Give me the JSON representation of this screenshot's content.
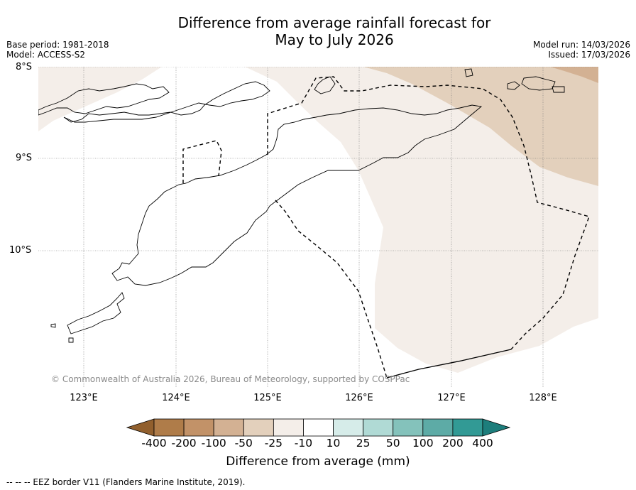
{
  "title": {
    "line1": "Difference from average rainfall forecast for",
    "line2": "May to July 2026"
  },
  "meta": {
    "base_period": "Base period: 1981-2018",
    "model": "Model: ACCESS-S2",
    "model_run": "Model run: 14/03/2026",
    "issued": "Issued: 17/03/2026"
  },
  "map": {
    "lat_labels": [
      "8°S",
      "9°S",
      "10°S"
    ],
    "lon_labels": [
      "123°E",
      "124°E",
      "125°E",
      "126°E",
      "127°E",
      "128°E"
    ],
    "copyright": "© Commonwealth of Australia 2026, Bureau of Meteorology, supported by COSPPac",
    "legend_categories": {
      "-50_to_-25": "#E3D0BC",
      "-25_to_-10": "#F4EEE9",
      "-100_to_-50": "#D3B193"
    }
  },
  "colorbar": {
    "tick_labels": [
      "-400",
      "-200",
      "-100",
      "-50",
      "-25",
      "-10",
      "10",
      "25",
      "50",
      "100",
      "200",
      "400"
    ],
    "colors": [
      "#915F2D",
      "#AF7C49",
      "#C29268",
      "#D3B193",
      "#E3D0BC",
      "#F4EEE9",
      "#FFFFFF",
      "#D6ECE9",
      "#B0DAD5",
      "#84C2BB",
      "#5DABA6",
      "#329A95",
      "#1D7E7C"
    ],
    "title": "Difference from average (mm)"
  },
  "footnote": "--  --  -- EEZ border V11 (Flanders Marine Institute, 2019)."
}
